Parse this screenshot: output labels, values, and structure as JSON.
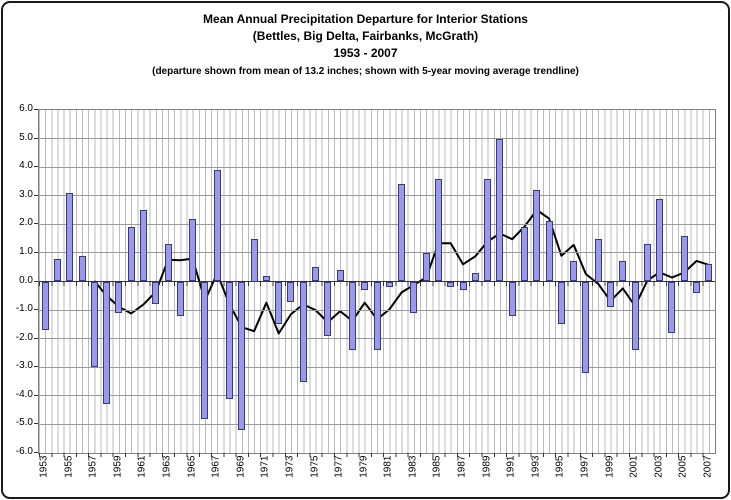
{
  "title": {
    "line1": "Mean Annual Precipitation Departure for Interior Stations",
    "line2": "(Bettles, Big Delta, Fairbanks, McGrath)",
    "line3": "1953 - 2007",
    "subtitle": "(departure shown from mean of 13.2 inches; shown with 5-year moving average trendline)"
  },
  "chart_data": {
    "type": "bar",
    "title": "Mean Annual Precipitation Departure for Interior Stations (Bettles, Big Delta, Fairbanks, McGrath) 1953 - 2007",
    "subtitle": "departure shown from mean of 13.2 inches; shown with 5-year moving average trendline",
    "xlabel": "",
    "ylabel": "",
    "ylim": [
      -6.0,
      6.0
    ],
    "y_ticks": [
      6.0,
      5.0,
      4.0,
      3.0,
      2.0,
      1.0,
      0.0,
      -1.0,
      -2.0,
      -3.0,
      -4.0,
      -5.0,
      -6.0
    ],
    "x_tick_labels": [
      "1953",
      "1955",
      "1957",
      "1959",
      "1961",
      "1963",
      "1965",
      "1967",
      "1969",
      "1971",
      "1973",
      "1975",
      "1977",
      "1979",
      "1981",
      "1983",
      "1985",
      "1987",
      "1989",
      "1991",
      "1993",
      "1995",
      "1997",
      "1999",
      "2001",
      "2003",
      "2005",
      "2007"
    ],
    "grid": "major horizontal + dense vertical minor",
    "legend": "none",
    "years": [
      1953,
      1954,
      1955,
      1956,
      1957,
      1958,
      1959,
      1960,
      1961,
      1962,
      1963,
      1964,
      1965,
      1966,
      1967,
      1968,
      1969,
      1970,
      1971,
      1972,
      1973,
      1974,
      1975,
      1976,
      1977,
      1978,
      1979,
      1980,
      1981,
      1982,
      1983,
      1984,
      1985,
      1986,
      1987,
      1988,
      1989,
      1990,
      1991,
      1992,
      1993,
      1994,
      1995,
      1996,
      1997,
      1998,
      1999,
      2000,
      2001,
      2002,
      2003,
      2004,
      2005,
      2006,
      2007
    ],
    "values": [
      -1.7,
      0.8,
      3.1,
      0.9,
      -3.0,
      -4.3,
      -1.1,
      1.9,
      2.5,
      -0.8,
      1.3,
      -1.2,
      2.2,
      -4.8,
      3.9,
      -4.1,
      -5.2,
      1.5,
      0.2,
      -1.5,
      -0.7,
      -3.5,
      0.5,
      -1.9,
      0.4,
      -2.4,
      -0.3,
      -2.4,
      -0.2,
      3.4,
      -1.1,
      1.0,
      3.6,
      -0.2,
      -0.3,
      0.3,
      3.6,
      5.0,
      -1.2,
      1.9,
      3.2,
      2.1,
      -1.5,
      0.7,
      -3.2,
      1.5,
      -0.9,
      0.7,
      -2.4,
      1.3,
      2.9,
      -1.8,
      1.6,
      -0.4,
      0.6
    ],
    "moving_average_5yr": [
      null,
      null,
      null,
      null,
      0.02,
      -0.5,
      -0.88,
      -1.12,
      -0.8,
      -0.36,
      0.76,
      0.74,
      0.8,
      -0.66,
      0.28,
      -0.8,
      -1.6,
      -1.74,
      -0.74,
      -1.82,
      -1.14,
      -0.8,
      -1.0,
      -1.42,
      -1.04,
      -1.38,
      -0.74,
      -1.32,
      -0.98,
      -0.38,
      -0.12,
      0.14,
      1.34,
      1.34,
      0.6,
      0.88,
      1.4,
      1.68,
      1.48,
      1.92,
      2.5,
      2.2,
      0.9,
      1.28,
      0.26,
      -0.08,
      -0.68,
      -0.24,
      -0.86,
      0.04,
      0.32,
      0.14,
      0.32,
      0.72,
      0.58
    ],
    "colors": {
      "bar_fill": "#9999EE",
      "bar_border": "#3A3A78",
      "trendline": "#000000",
      "major_grid": "#999999",
      "minor_grid": "#BBBBBB",
      "axis": "#333333",
      "plot_border": "#808080",
      "frame_border": "#1A1A1A"
    }
  }
}
